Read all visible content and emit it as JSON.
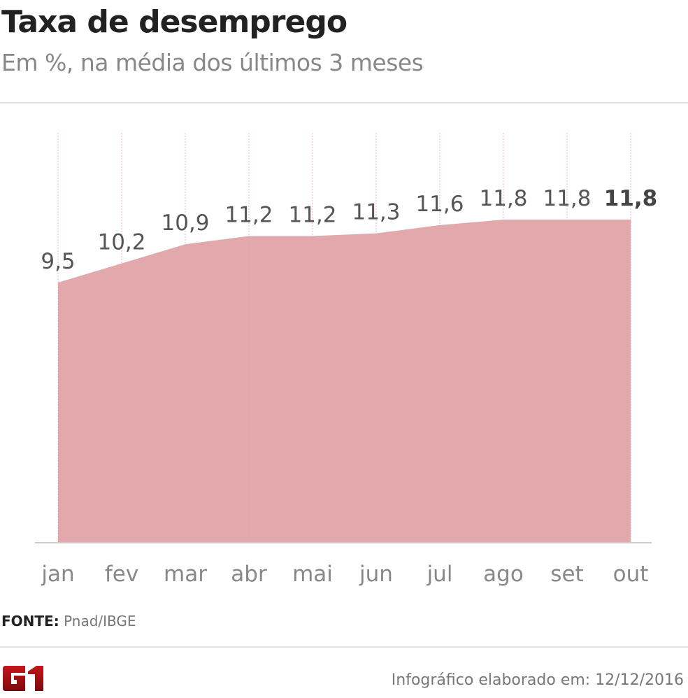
{
  "header": {
    "title": "Taxa de desemprego",
    "subtitle": "Em %, na média dos últimos 3 meses"
  },
  "chart_data": {
    "type": "area",
    "title": "Taxa de desemprego",
    "subtitle": "Em %, na média dos últimos 3 meses",
    "categories": [
      "jan",
      "fev",
      "mar",
      "abr",
      "mai",
      "jun",
      "jul",
      "ago",
      "set",
      "out"
    ],
    "values": [
      9.5,
      10.2,
      10.9,
      11.2,
      11.2,
      11.3,
      11.6,
      11.8,
      11.8,
      11.8
    ],
    "labels": [
      "9,5",
      "10,2",
      "10,9",
      "11,2",
      "11,2",
      "11,3",
      "11,6",
      "11,8",
      "11,8",
      "11,8"
    ],
    "ylim": [
      0,
      11.8
    ],
    "grid": "vertical dotted",
    "colors": {
      "fill": "#e2a8ac",
      "grid": "#e8a0a6",
      "label": "#555555",
      "axis": "#cccccc"
    }
  },
  "footer": {
    "source_label": "FONTE:",
    "source": "Pnad/IBGE",
    "logo": "G1",
    "credit": "Infográfico elaborado em: 12/12/2016"
  }
}
